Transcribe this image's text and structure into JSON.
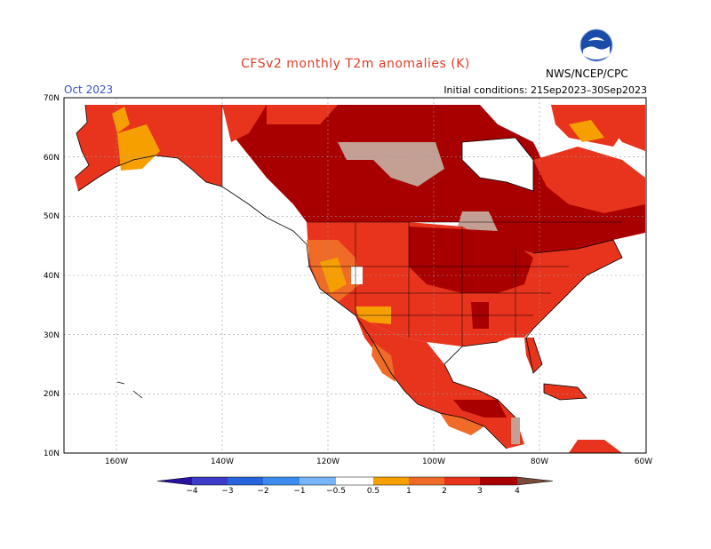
{
  "title": "CFSv2 monthly T2m anomalies (K)",
  "month": "Oct 2023",
  "initial_conditions": "Initial conditions: 21Sep2023–30Sep2023",
  "agency": "NWS/NCEP/CPC",
  "logo_icon": "noaa-logo-icon",
  "map": {
    "lat_labels": [
      "70N",
      "60N",
      "50N",
      "40N",
      "30N",
      "20N",
      "10N"
    ],
    "lon_labels": [
      "160W",
      "140W",
      "120W",
      "100W",
      "80W",
      "60W"
    ],
    "colors": {
      "0.5-1": "#f5a000",
      "1-2": "#f06a28",
      "2-3": "#e8341c",
      "3-4": "#a80000",
      "4+": "#c4a094",
      "ocean": "#ffffff"
    }
  },
  "colorbar": {
    "labels": [
      "−4",
      "−3",
      "−2",
      "−1",
      "−0.5",
      "0.5",
      "1",
      "2",
      "3",
      "4"
    ],
    "colors": [
      "#2814a0",
      "#3c3cc8",
      "#2864dc",
      "#3c8cf0",
      "#78b4f8",
      "#ffffff",
      "#f5a000",
      "#f06a28",
      "#e8341c",
      "#a80000",
      "#c4a094",
      "#7a4a3c"
    ]
  }
}
